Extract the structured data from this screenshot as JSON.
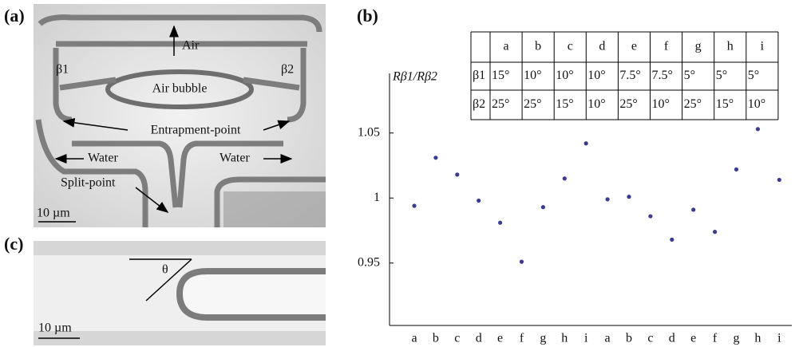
{
  "panels": {
    "a": {
      "label": "(a)",
      "air": "Air",
      "beta1": "β1",
      "beta2": "β2",
      "air_bubble": "Air bubble",
      "entrapment": "Entrapment-point",
      "water_left": "Water",
      "water_right": "Water",
      "split": "Split-point",
      "scale_bar": "10 µm"
    },
    "c": {
      "label": "(c)",
      "theta": "θ",
      "scale_bar": "10 µm"
    }
  },
  "chart_data": {
    "type": "scatter",
    "panel_label": "(b)",
    "ylabel": "Rβ1/Rβ2",
    "categories": [
      "a",
      "b",
      "c",
      "d",
      "e",
      "f",
      "g",
      "h",
      "i",
      "a",
      "b",
      "c",
      "d",
      "e",
      "f",
      "g",
      "h",
      "i"
    ],
    "values": [
      0.994,
      1.031,
      1.018,
      0.998,
      0.981,
      0.951,
      0.993,
      1.015,
      1.042,
      0.999,
      1.001,
      0.986,
      0.968,
      0.991,
      0.974,
      1.022,
      1.053,
      1.014
    ],
    "color": "#3b3b8f",
    "ylim": [
      0.902,
      1.094
    ],
    "yticks": [
      0.95,
      1.0,
      1.05
    ],
    "table": {
      "header": [
        "a",
        "b",
        "c",
        "d",
        "e",
        "f",
        "g",
        "h",
        "i"
      ],
      "rows": [
        {
          "label": "β1",
          "cells": [
            "15°",
            "10°",
            "10°",
            "10°",
            "7.5°",
            "7.5°",
            "5°",
            "5°",
            "5°"
          ]
        },
        {
          "label": "β2",
          "cells": [
            "25°",
            "25°",
            "15°",
            "10°",
            "25°",
            "10°",
            "25°",
            "15°",
            "10°"
          ]
        }
      ]
    }
  }
}
